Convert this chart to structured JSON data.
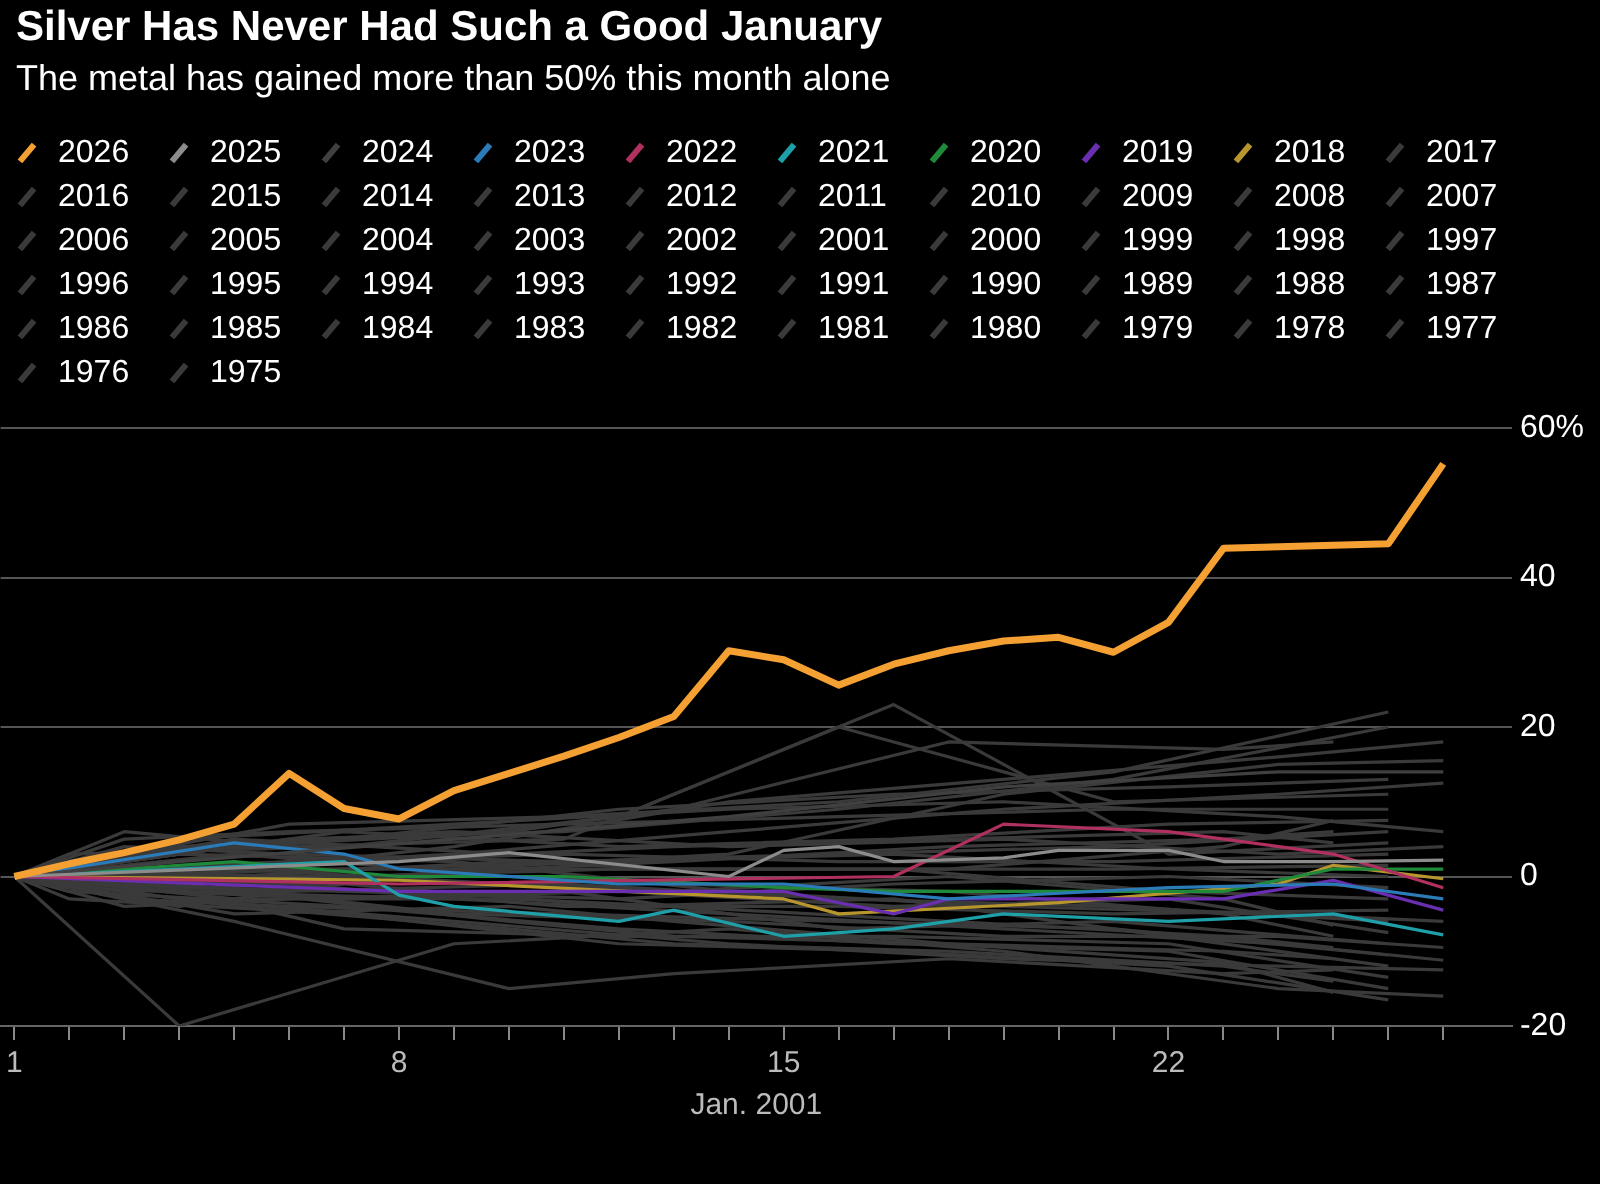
{
  "chart_data": {
    "type": "line",
    "title": "Silver Has Never Had Such a Good January",
    "subtitle": "The metal has gained more than 50% this month alone",
    "xlabel": "Jan. 2001",
    "x": [
      1,
      4,
      9,
      14,
      19,
      24,
      27
    ],
    "xlim": [
      0.75,
      28.25
    ],
    "xticks": [
      1,
      {
        "value": 2,
        "label": null
      },
      {
        "value": 3,
        "label": null
      },
      {
        "value": 4,
        "label": null
      },
      {
        "value": 5,
        "label": null
      },
      {
        "value": 6,
        "label": null
      },
      {
        "value": 7,
        "label": null
      },
      8,
      {
        "value": 9,
        "label": null
      },
      {
        "value": 10,
        "label": null
      },
      {
        "value": 11,
        "label": null
      },
      {
        "value": 12,
        "label": null
      },
      {
        "value": 13,
        "label": null
      },
      {
        "value": 14,
        "label": null
      },
      15,
      {
        "value": 16,
        "label": null
      },
      {
        "value": 17,
        "label": null
      },
      {
        "value": 18,
        "label": null
      },
      {
        "value": 19,
        "label": null
      },
      {
        "value": 20,
        "label": null
      },
      {
        "value": 21,
        "label": null
      },
      22,
      {
        "value": 23,
        "label": null
      },
      {
        "value": 24,
        "label": null
      },
      {
        "value": 25,
        "label": null
      },
      {
        "value": 26,
        "label": null
      },
      {
        "value": 27,
        "label": null
      }
    ],
    "ylim": [
      -20,
      60
    ],
    "yticks": [
      -20,
      0,
      20,
      40,
      {
        "value": 60,
        "label": "60%"
      }
    ],
    "grid": "y",
    "legend": "top left",
    "series": [
      {
        "name": "2026",
        "color": "#f5a033",
        "x": [
          1,
          2,
          3,
          4,
          5,
          6,
          7,
          8,
          9,
          10,
          11,
          12,
          13,
          14,
          15,
          16,
          17,
          18,
          19,
          20,
          21,
          22,
          23,
          26,
          27
        ],
        "values": [
          0,
          1.7,
          3.2,
          4.9,
          7,
          13.8,
          9.1,
          7.7,
          11.5,
          13.8,
          16.1,
          18.6,
          21.4,
          30.2,
          29,
          25.6,
          28.4,
          30.2,
          31.5,
          32,
          30,
          34,
          43.9,
          44.5,
          55.2
        ]
      },
      {
        "name": "2025",
        "color": "#8c8c8c",
        "x": [
          1,
          8,
          10,
          14,
          15,
          16,
          17,
          19,
          20,
          22,
          23,
          25,
          27
        ],
        "values": [
          0,
          2,
          3.2,
          0,
          3.5,
          4,
          2,
          2.5,
          3.5,
          3.5,
          2,
          2,
          2.2
        ]
      },
      {
        "name": "2024",
        "color": "#404040",
        "values": [
          0,
          2,
          5,
          8,
          12,
          14,
          14
        ]
      },
      {
        "name": "2023",
        "color": "#2b7bb9",
        "x": [
          1,
          5,
          7,
          8,
          12,
          15,
          18,
          22,
          25,
          27
        ],
        "values": [
          0,
          4.5,
          3,
          1,
          -1,
          -1,
          -3,
          -1.5,
          -1,
          -3
        ]
      },
      {
        "name": "2022",
        "color": "#b03060",
        "x": [
          1,
          8,
          17,
          19,
          22,
          25,
          27
        ],
        "values": [
          0,
          -1,
          0,
          7,
          6,
          3,
          -1.5
        ]
      },
      {
        "name": "2021",
        "color": "#1f9fa8",
        "x": [
          1,
          7,
          8,
          9,
          12,
          13,
          15,
          17,
          19,
          22,
          25,
          27
        ],
        "values": [
          0,
          2,
          -2.5,
          -4,
          -6,
          -4.5,
          -8,
          -7,
          -5,
          -6,
          -5,
          -7.8
        ]
      },
      {
        "name": "2020",
        "color": "#1e8a3a",
        "x": [
          1,
          5,
          8,
          11,
          15,
          17,
          20,
          23,
          25,
          27
        ],
        "values": [
          0,
          2,
          0,
          0,
          -1.5,
          -2,
          -2,
          -2,
          1,
          1
        ]
      },
      {
        "name": "2019",
        "color": "#6a2fb0",
        "x": [
          1,
          8,
          15,
          17,
          18,
          20,
          23,
          25,
          27
        ],
        "values": [
          0,
          -2,
          -2,
          -5,
          -3,
          -3,
          -3,
          -0.5,
          -4.5
        ]
      },
      {
        "name": "2018",
        "color": "#b8962e",
        "x": [
          1,
          8,
          15,
          16,
          20,
          24,
          25,
          27
        ],
        "values": [
          0,
          -0.5,
          -3,
          -5,
          -3.5,
          -1,
          1.5,
          -0.3
        ]
      },
      {
        "name": "2017",
        "color": "#3a3a3a",
        "values": [
          0,
          1,
          3,
          6,
          9,
          11,
          12.5
        ]
      },
      {
        "name": "2016",
        "color": "#3a3a3a",
        "values": [
          0,
          -2,
          -3,
          -5,
          -7,
          -9,
          -11.2
        ]
      },
      {
        "name": "2015",
        "color": "#3a3a3a",
        "values": [
          0,
          3,
          2,
          -2,
          -4,
          -5,
          -6
        ]
      },
      {
        "name": "2014",
        "color": "#3a3a3a",
        "values": [
          0,
          4,
          6,
          4,
          5,
          3,
          4
        ]
      },
      {
        "name": "2013",
        "color": "#3a3a3a",
        "values": [
          0,
          -1,
          -5,
          -6,
          -8,
          -8,
          -9.5
        ]
      },
      {
        "name": "2012",
        "color": "#3a3a3a",
        "values": [
          0,
          5,
          7,
          9,
          10,
          8,
          6
        ]
      },
      {
        "name": "2011",
        "color": "#3a3a3a",
        "values": [
          0,
          0,
          4,
          10,
          13,
          16,
          18
        ]
      },
      {
        "name": "2010",
        "color": "#3a3a3a",
        "values": [
          0,
          -3,
          -6,
          -9,
          -11,
          -12,
          -12.5
        ]
      },
      {
        "name": "2009",
        "color": "#3a3a3a",
        "values": [
          0,
          -4,
          1,
          3,
          11,
          15,
          15.5
        ]
      },
      {
        "name": "2008",
        "color": "#3a3a3a",
        "x": [
          1,
          3,
          6,
          11,
          16,
          21,
          26
        ],
        "values": [
          0,
          2,
          5,
          6,
          9,
          13,
          20
        ]
      },
      {
        "name": "2007",
        "color": "#3a3a3a",
        "x": [
          1,
          3,
          6,
          11,
          16,
          21,
          26
        ],
        "values": [
          0,
          1,
          2,
          3,
          2,
          2,
          3
        ]
      },
      {
        "name": "2006",
        "color": "#3a3a3a",
        "x": [
          1,
          3,
          6,
          11,
          16,
          21,
          26
        ],
        "values": [
          0,
          3,
          7,
          8,
          10,
          14,
          22
        ]
      },
      {
        "name": "2005",
        "color": "#3a3a3a",
        "x": [
          1,
          3,
          6,
          11,
          16,
          21,
          26
        ],
        "values": [
          0,
          -1,
          -2,
          -1,
          -3,
          -4,
          -6
        ]
      },
      {
        "name": "2004",
        "color": "#3a3a3a",
        "x": [
          1,
          3,
          6,
          11,
          16,
          21,
          26
        ],
        "values": [
          0,
          -2,
          -1,
          -4,
          -4,
          -5,
          -4.5
        ]
      },
      {
        "name": "2003",
        "color": "#3a3a3a",
        "x": [
          1,
          3,
          6,
          11,
          16,
          21,
          26
        ],
        "values": [
          0,
          4,
          3,
          2,
          3,
          4,
          6
        ]
      },
      {
        "name": "2002",
        "color": "#3a3a3a",
        "x": [
          1,
          3,
          6,
          11,
          16,
          21,
          26
        ],
        "values": [
          0,
          0,
          1,
          1,
          1,
          1,
          1.5
        ]
      },
      {
        "name": "2001",
        "color": "#3a3a3a",
        "x": [
          1,
          3,
          6,
          11,
          16,
          21,
          26
        ],
        "values": [
          0,
          -3,
          -4,
          -5,
          -6,
          -7,
          -10.5
        ]
      },
      {
        "name": "2000",
        "color": "#3a3a3a",
        "x": [
          1,
          3,
          6,
          11,
          16,
          21,
          26
        ],
        "values": [
          0,
          -4,
          -3,
          -2,
          -7,
          -6,
          -9
        ]
      },
      {
        "name": "1999",
        "color": "#3a3a3a",
        "x": [
          1,
          3,
          6,
          11,
          16,
          21,
          26
        ],
        "values": [
          0,
          5,
          6,
          7,
          8,
          9,
          9
        ]
      },
      {
        "name": "1998",
        "color": "#3a3a3a",
        "x": [
          1,
          2,
          7,
          12,
          17,
          22,
          26
        ],
        "values": [
          0,
          2,
          5,
          9,
          11,
          12,
          13
        ]
      },
      {
        "name": "1997",
        "color": "#3a3a3a",
        "x": [
          1,
          2,
          7,
          12,
          17,
          22,
          26
        ],
        "values": [
          0,
          -1,
          -2,
          -3,
          -1,
          0,
          -1.5
        ]
      },
      {
        "name": "1996",
        "color": "#3a3a3a",
        "x": [
          1,
          2,
          7,
          12,
          17,
          22,
          26
        ],
        "values": [
          0,
          0,
          1,
          2,
          3,
          1,
          0
        ]
      },
      {
        "name": "1995",
        "color": "#3a3a3a",
        "x": [
          1,
          2,
          7,
          12,
          17,
          22,
          26
        ],
        "values": [
          0,
          -2,
          -4,
          -7,
          -9,
          -10,
          -15
        ]
      },
      {
        "name": "1994",
        "color": "#3a3a3a",
        "x": [
          1,
          2,
          7,
          12,
          17,
          22,
          26
        ],
        "values": [
          0,
          1,
          6,
          4,
          5,
          7,
          7.5
        ]
      },
      {
        "name": "1993",
        "color": "#3a3a3a",
        "x": [
          1,
          2,
          7,
          12,
          17,
          22,
          26
        ],
        "values": [
          0,
          -1.5,
          -3,
          -2,
          -4,
          -3,
          -7.5
        ]
      },
      {
        "name": "1992",
        "color": "#3a3a3a",
        "x": [
          1,
          2,
          7,
          12,
          17,
          22,
          26
        ],
        "values": [
          0,
          0.5,
          0,
          1,
          1,
          -2,
          -3
        ]
      },
      {
        "name": "1991",
        "color": "#3a3a3a",
        "x": [
          1,
          2,
          7,
          12,
          17,
          22,
          26
        ],
        "values": [
          0,
          -3,
          -5,
          -9,
          -10,
          -12,
          -16.5
        ]
      },
      {
        "name": "1990",
        "color": "#3a3a3a",
        "x": [
          1,
          2,
          7,
          12,
          17,
          22,
          26
        ],
        "values": [
          0,
          -0.5,
          -1,
          -4,
          -3,
          -8,
          -12
        ]
      },
      {
        "name": "1989",
        "color": "#3a3a3a",
        "x": [
          1,
          2,
          7,
          12,
          17,
          22,
          26
        ],
        "values": [
          0,
          1.5,
          -7,
          -8,
          -8,
          -9,
          -13.5
        ]
      },
      {
        "name": "1988",
        "color": "#3a3a3a",
        "x": [
          1,
          5,
          10,
          13,
          18,
          23,
          25
        ],
        "values": [
          0,
          1,
          -1,
          -2,
          0,
          -3,
          -6.5
        ]
      },
      {
        "name": "1987",
        "color": "#3a3a3a",
        "x": [
          1,
          5,
          10,
          13,
          18,
          23,
          25
        ],
        "values": [
          0,
          -1,
          1,
          2,
          4,
          5,
          6
        ]
      },
      {
        "name": "1986",
        "color": "#3a3a3a",
        "x": [
          1,
          5,
          10,
          13,
          18,
          23,
          25
        ],
        "values": [
          0,
          -2,
          -6,
          -8,
          -9,
          -10,
          -11
        ]
      },
      {
        "name": "1985",
        "color": "#3a3a3a",
        "x": [
          1,
          5,
          10,
          13,
          18,
          23,
          25
        ],
        "values": [
          0,
          -3,
          -3,
          -4,
          -6,
          -8,
          -9.5
        ]
      },
      {
        "name": "1984",
        "color": "#3a3a3a",
        "x": [
          1,
          5,
          10,
          13,
          18,
          23,
          25
        ],
        "values": [
          0,
          3,
          0,
          -1,
          -2,
          -5,
          -8
        ]
      },
      {
        "name": "1983",
        "color": "#3a3a3a",
        "x": [
          1,
          2,
          7,
          12,
          17,
          22,
          26
        ],
        "values": [
          0,
          3,
          4,
          8,
          23,
          3,
          4.5
        ]
      },
      {
        "name": "1982",
        "color": "#3a3a3a",
        "x": [
          1,
          5,
          10,
          13,
          18,
          23,
          25
        ],
        "values": [
          0,
          4,
          6,
          9,
          18,
          17,
          18
        ]
      },
      {
        "name": "1981",
        "color": "#3a3a3a",
        "x": [
          1,
          5,
          10,
          13,
          18,
          23,
          25
        ],
        "values": [
          0,
          -4,
          -7,
          -9,
          -10,
          -12,
          -14
        ]
      },
      {
        "name": "1980",
        "color": "#3a3a3a",
        "values": [
          0,
          -20,
          -9,
          -7,
          -10,
          -15,
          -16
        ]
      },
      {
        "name": "1979",
        "color": "#3a3a3a",
        "x": [
          1,
          3,
          6,
          11,
          16,
          21,
          26
        ],
        "values": [
          0,
          6,
          4,
          5,
          20,
          10,
          11
        ]
      },
      {
        "name": "1978",
        "color": "#3a3a3a",
        "x": [
          1,
          5,
          10,
          13,
          18,
          23,
          25
        ],
        "values": [
          0,
          -6,
          -15,
          -13,
          -11,
          -13,
          -12.5
        ]
      },
      {
        "name": "1977",
        "color": "#3a3a3a",
        "x": [
          1,
          5,
          10,
          13,
          18,
          23,
          25
        ],
        "values": [
          0,
          0,
          2,
          1,
          1,
          4,
          7.5
        ]
      },
      {
        "name": "1976",
        "color": "#3a3a3a",
        "x": [
          1,
          5,
          10,
          13,
          18,
          23,
          25
        ],
        "values": [
          0,
          -5,
          -4,
          -6,
          -9,
          -11.5,
          -15.5
        ]
      },
      {
        "name": "1975",
        "color": "#3a3a3a",
        "x": [
          1,
          5,
          10,
          13,
          18,
          23,
          25
        ],
        "values": [
          0,
          5,
          3,
          4,
          5,
          6,
          4.5
        ]
      }
    ]
  }
}
